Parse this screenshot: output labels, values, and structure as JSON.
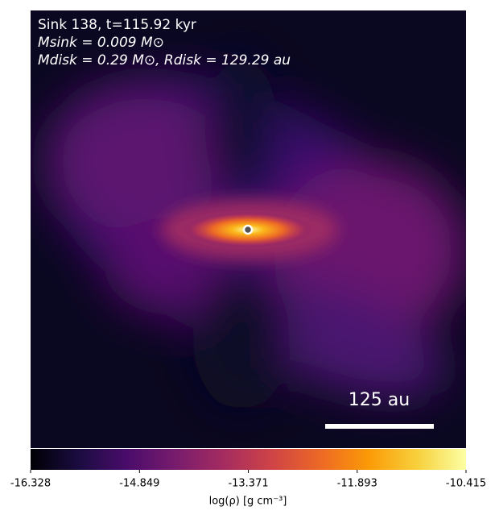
{
  "chart_data": {
    "type": "density-map",
    "annotations": [
      "Sink 138, t=115.92 kyr",
      "Msink = 0.009 M⊙",
      "Mdisk = 0.29 M⊙, Rdisk = 129.29 au"
    ],
    "scale_bar_label": "125 au",
    "colorbar": {
      "label": "log(ρ) [g cm⁻³]",
      "lim": [
        -16.328,
        -10.415
      ],
      "ticks": [
        -16.328,
        -14.849,
        -13.371,
        -11.893,
        -10.415
      ],
      "colormap": "inferno"
    }
  }
}
